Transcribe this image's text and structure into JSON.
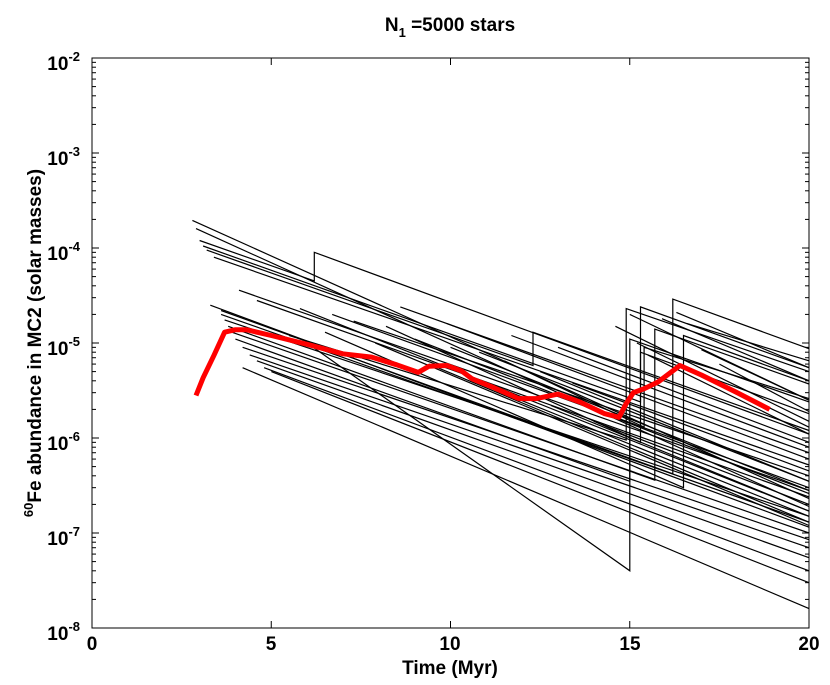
{
  "chart_data": {
    "type": "line",
    "title": {
      "main": "N",
      "subscript": "1",
      "rest": " =5000 stars"
    },
    "xlabel": "Time (Myr)",
    "ylabel": {
      "sup": "60",
      "text": "Fe abundance in MC2 (solar masses)"
    },
    "xlim": [
      0,
      20
    ],
    "ylim": [
      1e-08,
      0.01
    ],
    "yscale": "log",
    "grid": false,
    "x_ticks": [
      "0",
      "5",
      "10",
      "15",
      "20"
    ],
    "y_ticks": [
      {
        "base": "10",
        "exp": "-8"
      },
      {
        "base": "10",
        "exp": "-7"
      },
      {
        "base": "10",
        "exp": "-6"
      },
      {
        "base": "10",
        "exp": "-5"
      },
      {
        "base": "10",
        "exp": "-4"
      },
      {
        "base": "10",
        "exp": "-3"
      },
      {
        "base": "10",
        "exp": "-2"
      }
    ],
    "colors": {
      "mean": "#ff0000",
      "realizations": "#000000"
    },
    "series": [
      {
        "style": "mean",
        "x": [
          2.9,
          3.1,
          3.4,
          3.7,
          4.0,
          4.3,
          5.0,
          6.0,
          7.0,
          7.8,
          8.5,
          9.1,
          9.4,
          9.9,
          10.3,
          10.6,
          11.2,
          11.9,
          12.4,
          13.0,
          13.6,
          14.3,
          14.7,
          14.9,
          15.1,
          15.4,
          15.8,
          16.4,
          17.0,
          18.0,
          18.9
        ],
        "y": [
          2.8e-06,
          4.3e-06,
          7.4e-06,
          1.3e-05,
          1.38e-05,
          1.38e-05,
          1.2e-05,
          9.7e-06,
          7.7e-06,
          7.1e-06,
          5.9e-06,
          4.9e-06,
          5.7e-06,
          5.8e-06,
          5.1e-06,
          4.2e-06,
          3.4e-06,
          2.6e-06,
          2.6e-06,
          2.9e-06,
          2.4e-06,
          1.8e-06,
          1.65e-06,
          2.3e-06,
          3e-06,
          3.3e-06,
          3.9e-06,
          5.8e-06,
          4.6e-06,
          3e-06,
          2e-06
        ]
      },
      {
        "style": "realization",
        "x": [
          2.8,
          20.0
        ],
        "y": [
          0.000195,
          2.3e-07
        ]
      },
      {
        "style": "realization",
        "x": [
          2.9,
          20.0
        ],
        "y": [
          0.00016,
          1.9e-07
        ]
      },
      {
        "style": "realization",
        "x": [
          3.0,
          6.2,
          6.2,
          20.0
        ],
        "y": [
          0.00012,
          4.5e-05,
          9e-05,
          1.1e-06
        ]
      },
      {
        "style": "realization",
        "x": [
          3.1,
          15.3,
          15.3,
          20.0
        ],
        "y": [
          0.000105,
          2.4e-06,
          2.4e-05,
          5.5e-06
        ]
      },
      {
        "style": "realization",
        "x": [
          3.2,
          12.3,
          12.3,
          20.0
        ],
        "y": [
          9.5e-05,
          5.8e-06,
          1.3e-05,
          1.2e-06
        ]
      },
      {
        "style": "realization",
        "x": [
          3.4,
          20.0
        ],
        "y": [
          8e-05,
          5.2e-07
        ]
      },
      {
        "style": "realization",
        "x": [
          3.6,
          16.2,
          16.2,
          20.0
        ],
        "y": [
          2.2e-05,
          4.2e-07,
          2.9e-05,
          8.7e-06
        ]
      },
      {
        "style": "realization",
        "x": [
          3.6,
          20.0
        ],
        "y": [
          2e-05,
          1.3e-07
        ]
      },
      {
        "style": "realization",
        "x": [
          3.7,
          20.0
        ],
        "y": [
          1.75e-05,
          1.5e-07
        ]
      },
      {
        "style": "realization",
        "x": [
          3.8,
          15.7,
          15.7,
          20.0
        ],
        "y": [
          1.5e-05,
          3.6e-07,
          1.4e-05,
          3.7e-06
        ]
      },
      {
        "style": "realization",
        "x": [
          3.9,
          20.0
        ],
        "y": [
          1.3e-05,
          1e-07
        ]
      },
      {
        "style": "realization",
        "x": [
          4.0,
          15.0,
          15.0,
          20.0
        ],
        "y": [
          1.1e-05,
          3.5e-07,
          1.1e-05,
          2.4e-06
        ]
      },
      {
        "style": "realization",
        "x": [
          4.2,
          20.0
        ],
        "y": [
          9e-06,
          8.5e-08
        ]
      },
      {
        "style": "realization",
        "x": [
          4.4,
          20.0
        ],
        "y": [
          7.5e-06,
          7e-08
        ]
      },
      {
        "style": "realization",
        "x": [
          4.6,
          20.0
        ],
        "y": [
          6.5e-06,
          5.5e-08
        ]
      },
      {
        "style": "realization",
        "x": [
          4.8,
          20.0
        ],
        "y": [
          5.5e-06,
          4e-08
        ]
      },
      {
        "style": "realization",
        "x": [
          5.0,
          20.0
        ],
        "y": [
          5e-06,
          3e-08
        ]
      },
      {
        "style": "realization",
        "x": [
          4.2,
          20.0
        ],
        "y": [
          5.5e-06,
          1.6e-08
        ]
      },
      {
        "style": "realization",
        "x": [
          5.5,
          14.9,
          14.9,
          20.0
        ],
        "y": [
          1.2e-05,
          9.5e-07,
          2.3e-05,
          5e-06
        ]
      },
      {
        "style": "realization",
        "x": [
          6.0,
          15.0,
          15.0
        ],
        "y": [
          1e-05,
          4e-08,
          1.2e-06
        ]
      },
      {
        "style": "realization",
        "x": [
          6.5,
          16.5,
          16.5,
          20.0
        ],
        "y": [
          1.3e-05,
          3e-07,
          1.2e-05,
          4e-06
        ]
      },
      {
        "style": "realization",
        "x": [
          7.3,
          20.0
        ],
        "y": [
          1.7e-05,
          4e-07
        ]
      },
      {
        "style": "realization",
        "x": [
          8.2,
          15.3,
          15.3,
          20.0
        ],
        "y": [
          1.5e-05,
          9e-07,
          8e-06,
          1.8e-06
        ]
      },
      {
        "style": "realization",
        "x": [
          9.0,
          20.0
        ],
        "y": [
          1.1e-05,
          2.6e-07
        ]
      },
      {
        "style": "realization",
        "x": [
          10.0,
          20.0
        ],
        "y": [
          9e-06,
          2.8e-07
        ]
      },
      {
        "style": "realization",
        "x": [
          10.8,
          20.0
        ],
        "y": [
          8e-06,
          3.5e-07
        ]
      },
      {
        "style": "realization",
        "x": [
          11.5,
          15.4,
          15.4,
          20.0
        ],
        "y": [
          6.5e-06,
          1.3e-06,
          9e-06,
          2.6e-06
        ]
      },
      {
        "style": "realization",
        "x": [
          12.5,
          20.0
        ],
        "y": [
          5e-06,
          3.5e-07
        ]
      },
      {
        "style": "realization",
        "x": [
          13.4,
          20.0
        ],
        "y": [
          3.8e-06,
          4.5e-07
        ]
      },
      {
        "style": "realization",
        "x": [
          14.6,
          20.0
        ],
        "y": [
          1.5e-05,
          1.5e-06
        ]
      },
      {
        "style": "realization",
        "x": [
          15.0,
          20.0
        ],
        "y": [
          2e-05,
          2.5e-06
        ]
      },
      {
        "style": "realization",
        "x": [
          15.2,
          20.0
        ],
        "y": [
          1e-05,
          1.3e-06
        ]
      },
      {
        "style": "realization",
        "x": [
          15.5,
          20.0
        ],
        "y": [
          7.5e-06,
          1.1e-06
        ]
      },
      {
        "style": "realization",
        "x": [
          15.9,
          20.0
        ],
        "y": [
          1.8e-05,
          4e-06
        ]
      },
      {
        "style": "realization",
        "x": [
          16.3,
          20.0
        ],
        "y": [
          2.1e-05,
          5.5e-06
        ]
      },
      {
        "style": "realization",
        "x": [
          16.6,
          20.0
        ],
        "y": [
          1.6e-05,
          6.5e-06
        ]
      },
      {
        "style": "realization",
        "x": [
          17.0,
          20.0
        ],
        "y": [
          8.5e-06,
          2.5e-06
        ]
      },
      {
        "style": "realization",
        "x": [
          17.5,
          20.0
        ],
        "y": [
          6e-06,
          1.9e-06
        ]
      },
      {
        "style": "realization",
        "x": [
          5.8,
          20.0
        ],
        "y": [
          2.3e-05,
          1.7e-07
        ]
      },
      {
        "style": "realization",
        "x": [
          7.9,
          20.0
        ],
        "y": [
          1e-05,
          1.2e-07
        ]
      },
      {
        "style": "realization",
        "x": [
          9.4,
          20.0
        ],
        "y": [
          6e-06,
          1.3e-07
        ]
      },
      {
        "style": "realization",
        "x": [
          11.0,
          20.0
        ],
        "y": [
          3.5e-06,
          1.5e-07
        ]
      },
      {
        "style": "realization",
        "x": [
          12.8,
          20.0
        ],
        "y": [
          2.2e-06,
          1.7e-07
        ]
      },
      {
        "style": "realization",
        "x": [
          14.0,
          20.0
        ],
        "y": [
          1.5e-06,
          2e-07
        ]
      },
      {
        "style": "realization",
        "x": [
          4.6,
          20.0
        ],
        "y": [
          2.8e-05,
          2.4e-07
        ]
      },
      {
        "style": "realization",
        "x": [
          6.7,
          20.0
        ],
        "y": [
          2e-05,
          3e-07
        ]
      },
      {
        "style": "realization",
        "x": [
          8.6,
          20.0
        ],
        "y": [
          2.4e-05,
          7e-07
        ]
      },
      {
        "style": "realization",
        "x": [
          9.9,
          20.0
        ],
        "y": [
          1.6e-05,
          6e-07
        ]
      },
      {
        "style": "realization",
        "x": [
          11.7,
          20.0
        ],
        "y": [
          1.2e-05,
          8e-07
        ]
      },
      {
        "style": "realization",
        "x": [
          13.0,
          20.0
        ],
        "y": [
          9e-06,
          9e-07
        ]
      },
      {
        "style": "realization",
        "x": [
          4.1,
          20.0
        ],
        "y": [
          3.6e-05,
          2.8e-07
        ]
      },
      {
        "style": "realization",
        "x": [
          3.3,
          20.0
        ],
        "y": [
          2.5e-05,
          1.15e-07
        ]
      }
    ]
  }
}
